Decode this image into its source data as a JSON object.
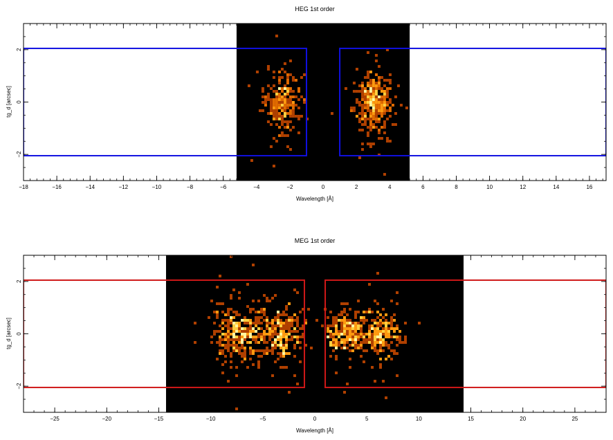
{
  "chart_data": [
    {
      "type": "heatmap",
      "title": "HEG 1st order",
      "xlabel": "Wavelength [Å]",
      "ylabel": "tg_d [arcsec]",
      "xlim": [
        -18,
        17
      ],
      "ylim": [
        -3,
        3
      ],
      "x_ticks": [
        -18,
        -16,
        -14,
        -12,
        -10,
        -8,
        -6,
        -4,
        -2,
        0,
        2,
        4,
        6,
        8,
        10,
        12,
        14,
        16
      ],
      "y_ticks": [
        -2,
        0,
        2
      ],
      "image_extent_x": [
        -5.2,
        5.2
      ],
      "background_color": "#000000",
      "regions": [
        {
          "x": [
            -18,
            -1.0
          ],
          "y": [
            -2.05,
            2.05
          ],
          "color": "#1010e0"
        },
        {
          "x": [
            1.0,
            17
          ],
          "y": [
            -2.05,
            2.05
          ],
          "color": "#1010e0"
        }
      ],
      "clusters": [
        {
          "x_center": -2.5,
          "x_sigma": 0.55,
          "y_sigma": 0.55,
          "count": 260
        },
        {
          "x_center": 3.0,
          "x_sigma": 0.6,
          "y_sigma": 0.55,
          "count": 380
        }
      ]
    },
    {
      "type": "heatmap",
      "title": "MEG 1st order",
      "xlabel": "Wavelength [Å]",
      "ylabel": "tg_d [arcsec]",
      "xlim": [
        -28,
        28
      ],
      "ylim": [
        -3,
        3
      ],
      "x_ticks": [
        -25,
        -20,
        -15,
        -10,
        -5,
        0,
        5,
        10,
        15,
        20,
        25
      ],
      "y_ticks": [
        -2,
        0,
        2
      ],
      "image_extent_x": [
        -14.3,
        14.3
      ],
      "background_color": "#000000",
      "regions": [
        {
          "x": [
            -28,
            -1.0
          ],
          "y": [
            -2.05,
            2.05
          ],
          "color": "#d01818"
        },
        {
          "x": [
            1.0,
            28
          ],
          "y": [
            -2.05,
            2.05
          ],
          "color": "#d01818"
        }
      ],
      "clusters": [
        {
          "x_center": -7.3,
          "x_sigma": 1.3,
          "y_sigma": 0.5,
          "count": 320
        },
        {
          "x_center": -3.3,
          "x_sigma": 1.1,
          "y_sigma": 0.5,
          "count": 280
        },
        {
          "x_center": 3.2,
          "x_sigma": 1.1,
          "y_sigma": 0.45,
          "count": 260
        },
        {
          "x_center": 6.3,
          "x_sigma": 1.0,
          "y_sigma": 0.45,
          "count": 220
        }
      ]
    }
  ]
}
